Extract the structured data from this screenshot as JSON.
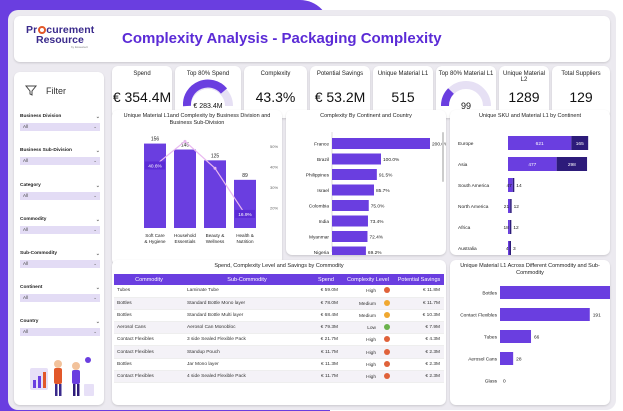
{
  "brand": {
    "line1": "Pr  curement",
    "line2": "Resource",
    "tagline": "by Esseelect"
  },
  "title": "Complexity Analysis - Packaging Complexity",
  "kpis": [
    {
      "label": "Spend",
      "value": "€ 354.4M"
    },
    {
      "label": "Top 80% Spend",
      "value": "€ 283.4M"
    },
    {
      "label": "Complexity",
      "value": "43.3%"
    },
    {
      "label": "Potential Savings",
      "value": "€ 53.2M"
    },
    {
      "label": "Unique Material L1",
      "value": "515"
    },
    {
      "label": "Top 80% Material L1",
      "value": "99"
    },
    {
      "label": "Unique Material L2",
      "value": "1289"
    },
    {
      "label": "Total Suppliers",
      "value": "129"
    }
  ],
  "filter": {
    "title": "Filter",
    "items": [
      {
        "label": "Business Division",
        "value": "All"
      },
      {
        "label": "Business Sub-Division",
        "value": "All"
      },
      {
        "label": "Category",
        "value": "All"
      },
      {
        "label": "Commodity",
        "value": "All"
      },
      {
        "label": "Sub-Commodity",
        "value": "All"
      },
      {
        "label": "Continent",
        "value": "All"
      },
      {
        "label": "Country",
        "value": "All"
      }
    ]
  },
  "chart_data": [
    {
      "type": "bar",
      "title": "Unique Material L1and Complexity by Business Division and Business Sub-Division",
      "categories": [
        "Soft Care & Hygiene",
        "Household Essentials",
        "Beauty & Wellness",
        "Health & Nutrition"
      ],
      "series": [
        {
          "values": [
            156,
            145,
            125,
            89
          ]
        },
        {
          "values": [
            40.6,
            52.4,
            39.2,
            16.9
          ]
        }
      ],
      "y2_ticks": [
        "50%",
        "40%",
        "30%",
        "20%"
      ],
      "labels2": [
        "40.6%",
        "",
        "",
        "16.9%"
      ]
    },
    {
      "type": "bar",
      "title": "Complexity By Continent and Country",
      "categories": [
        "France",
        "Brazil",
        "Philippines",
        "Israel",
        "Colombia",
        "India",
        "Myanmar",
        "Nigeria"
      ],
      "values": [
        200.0,
        100.0,
        91.5,
        85.7,
        75.0,
        73.4,
        72.4,
        69.2
      ],
      "labels": [
        "200.0%",
        "100.0%",
        "91.5%",
        "85.7%",
        "75.0%",
        "73.4%",
        "72.4%",
        "69.2%"
      ]
    },
    {
      "type": "bar",
      "title": "Unique SKU and Material L1 by Continent",
      "categories": [
        "Europe",
        "Asia",
        "South America",
        "North America",
        "Africa",
        "Australia"
      ],
      "series": [
        {
          "values": [
            621,
            477,
            47,
            21,
            18,
            4
          ]
        },
        {
          "values": [
            165,
            298,
            14,
            12,
            12,
            3
          ]
        }
      ]
    },
    {
      "type": "bar",
      "title": "Unique Material L1 Across Different Commodity and Sub-Commodity",
      "categories": [
        "Bottles",
        "Contact Flexibles",
        "Tubes",
        "Aerosol Cans",
        "Glass"
      ],
      "values": [
        235,
        191,
        66,
        28,
        0
      ],
      "labels": [
        "235",
        "191",
        "66",
        "28",
        "0"
      ]
    }
  ],
  "table": {
    "title": "Spend, Complexity Level and Savings by Commodity",
    "headers": [
      "Commodity",
      "Sub-Commodity",
      "Spend",
      "Complexity Level",
      "Potential Savings"
    ],
    "rows": [
      {
        "c": "Tubes",
        "s": "Laminate Tube",
        "spend": "€ 59.0M",
        "lvl": "High",
        "col": "#e0623a",
        "sav": "€ 11.8M"
      },
      {
        "c": "Bottles",
        "s": "Standard Bottle Mono layer",
        "spend": "€ 78.0M",
        "lvl": "Medium",
        "col": "#f0a830",
        "sav": "€ 11.7M"
      },
      {
        "c": "Bottles",
        "s": "Standard Bottle Multi layer",
        "spend": "€ 68.4M",
        "lvl": "Medium",
        "col": "#f0a830",
        "sav": "€ 10.3M"
      },
      {
        "c": "Aerosol Cans",
        "s": "Aerosol Can Monobloc",
        "spend": "€ 79.3M",
        "lvl": "Low",
        "col": "#6bb24c",
        "sav": "€ 7.9M"
      },
      {
        "c": "Contact Flexibles",
        "s": "3 side Sealed Flexible Pack",
        "spend": "€ 21.7M",
        "lvl": "High",
        "col": "#e0623a",
        "sav": "€ 4.3M"
      },
      {
        "c": "Contact Flexibles",
        "s": "Standup Pouch",
        "spend": "€ 11.7M",
        "lvl": "High",
        "col": "#e0623a",
        "sav": "€ 2.3M"
      },
      {
        "c": "Bottles",
        "s": "Jar Mono layer",
        "spend": "€ 11.3M",
        "lvl": "High",
        "col": "#e0623a",
        "sav": "€ 2.3M"
      },
      {
        "c": "Contact Flexibles",
        "s": "4 side Sealed Flexible Pack",
        "spend": "€ 11.7M",
        "lvl": "High",
        "col": "#e0623a",
        "sav": "€ 2.3M"
      }
    ]
  },
  "colors": {
    "primary": "#6a3ee0",
    "dark": "#2d1b7a",
    "title": "#5b2bd6"
  }
}
